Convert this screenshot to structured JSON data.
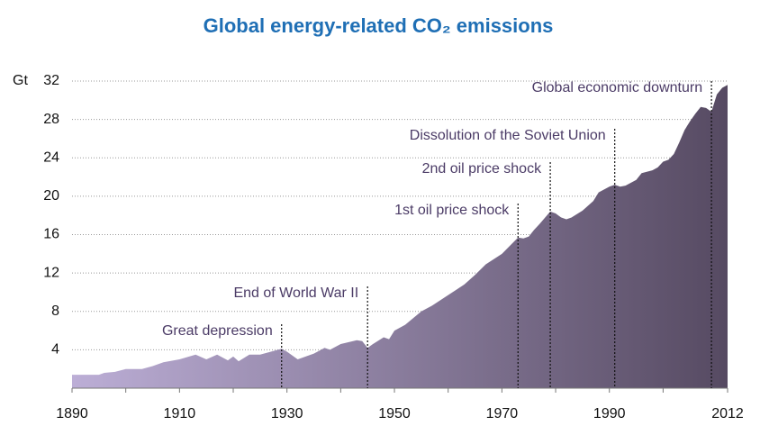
{
  "chart_data": {
    "type": "area",
    "title": "Global energy-related CO₂ emissions",
    "y_label": "Gt",
    "x": [
      1890,
      1895,
      1896,
      1898,
      1900,
      1903,
      1905,
      1907,
      1910,
      1913,
      1915,
      1917,
      1919,
      1920,
      1921,
      1923,
      1925,
      1927,
      1929,
      1930,
      1932,
      1933,
      1935,
      1937,
      1938,
      1940,
      1943,
      1944,
      1945,
      1946,
      1948,
      1949,
      1950,
      1952,
      1955,
      1957,
      1960,
      1963,
      1965,
      1967,
      1970,
      1973,
      1974,
      1975,
      1976,
      1977,
      1979,
      1980,
      1981,
      1982,
      1983,
      1985,
      1987,
      1988,
      1990,
      1991,
      1992,
      1993,
      1995,
      1996,
      1998,
      1999,
      2000,
      2001,
      2002,
      2003,
      2004,
      2005,
      2006,
      2007,
      2008,
      2009,
      2010,
      2011,
      2012
    ],
    "series": [
      {
        "name": "Emissions",
        "values": [
          1.4,
          1.4,
          1.6,
          1.7,
          2.0,
          2.0,
          2.3,
          2.7,
          3.0,
          3.5,
          3.0,
          3.5,
          2.9,
          3.3,
          2.8,
          3.5,
          3.5,
          3.8,
          4.1,
          3.8,
          3.0,
          3.2,
          3.6,
          4.2,
          4.0,
          4.6,
          5.0,
          4.9,
          4.2,
          4.6,
          5.3,
          5.1,
          6.0,
          6.6,
          8.0,
          8.6,
          9.7,
          10.8,
          11.8,
          12.9,
          14.0,
          15.7,
          15.6,
          15.8,
          16.5,
          17.1,
          18.4,
          18.2,
          17.8,
          17.6,
          17.8,
          18.5,
          19.5,
          20.4,
          21.0,
          21.2,
          21.0,
          21.1,
          21.7,
          22.4,
          22.7,
          23.0,
          23.6,
          23.8,
          24.4,
          25.6,
          26.9,
          27.8,
          28.6,
          29.3,
          29.2,
          28.8,
          30.6,
          31.3,
          31.6
        ]
      }
    ],
    "gradient": [
      "#bcaed6",
      "#564a62"
    ],
    "xlim": [
      1890,
      2012
    ],
    "xticks": [
      1890,
      1910,
      1930,
      1950,
      1970,
      1990,
      2012
    ],
    "xminorticks": [
      1900,
      1920,
      1940,
      1960,
      1980,
      2000
    ],
    "ylim": [
      0,
      32
    ],
    "yticks": [
      4,
      8,
      12,
      16,
      20,
      24,
      28,
      32
    ],
    "grid": true,
    "annotations": [
      {
        "text": "Great depression",
        "x": 1929
      },
      {
        "text": "End of World War II",
        "x": 1945
      },
      {
        "text": "1st oil price shock",
        "x": 1973
      },
      {
        "text": "2nd oil price shock",
        "x": 1979
      },
      {
        "text": "Dissolution of the Soviet Union",
        "x": 1991
      },
      {
        "text": "Global economic downturn",
        "x": 2009
      }
    ]
  }
}
